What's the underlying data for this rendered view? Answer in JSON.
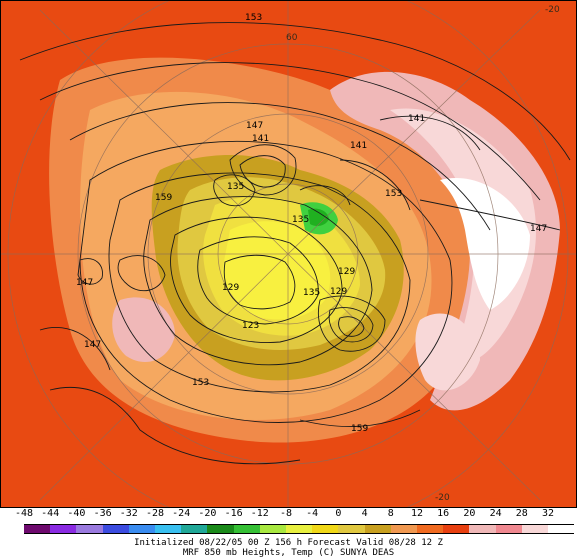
{
  "map": {
    "contour_labels": [
      "153",
      "147",
      "141",
      "159",
      "135",
      "129",
      "123",
      "141",
      "153",
      "147",
      "147",
      "147",
      "153",
      "159",
      "141",
      "129",
      "135",
      "129",
      "135"
    ],
    "edge_labels": [
      "60",
      "-20",
      "-20"
    ]
  },
  "colorbar": {
    "ticks": [
      "-48",
      "-44",
      "-40",
      "-36",
      "-32",
      "-28",
      "-24",
      "-20",
      "-16",
      "-12",
      "-8",
      "-4",
      "0",
      "4",
      "8",
      "12",
      "16",
      "20",
      "24",
      "28",
      "32"
    ],
    "colors": [
      "#6e0a6e",
      "#8a2be2",
      "#9a7adf",
      "#3c4ce0",
      "#3a8cf0",
      "#39c0f0",
      "#20a898",
      "#1a8a1a",
      "#35c035",
      "#a8e840",
      "#e8f040",
      "#f0d818",
      "#e0c840",
      "#c8a020",
      "#f09850",
      "#f06a20",
      "#e84010",
      "#f0b8b8",
      "#f08890",
      "#f8d8d8",
      "#ffffff"
    ]
  },
  "captions": {
    "line1": "Initialized 08/22/05 00 Z  156 h Forecast Valid 08/28 12 Z",
    "line2": "MRF 850 mb  Heights, Temp (C)     SUNYA DEAS"
  }
}
